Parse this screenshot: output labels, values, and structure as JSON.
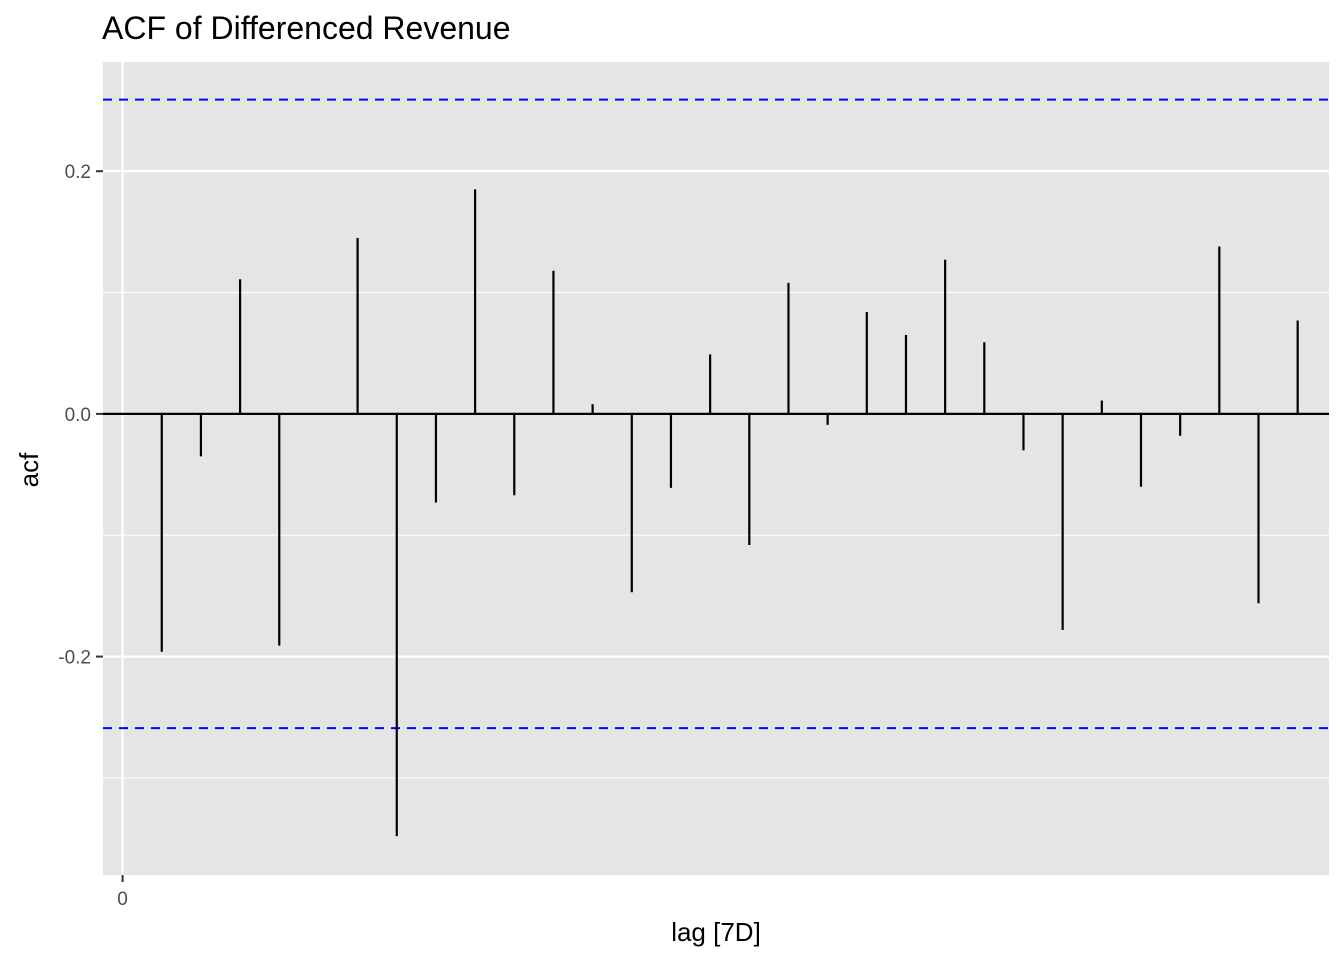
{
  "chart_data": {
    "type": "bar",
    "title": "ACF of Differenced Revenue",
    "xlabel": "lag [7D]",
    "ylabel": "acf",
    "xlim": [
      -0.5,
      30.8
    ],
    "ylim": [
      -0.38,
      0.29
    ],
    "x_ticks": [
      0
    ],
    "x_tick_labels": [
      "0"
    ],
    "y_ticks": [
      -0.2,
      0.0,
      0.2
    ],
    "y_tick_labels": [
      "-0.2",
      "0.0",
      "0.2"
    ],
    "y_minor_gridlines": [
      -0.3,
      -0.1,
      0.1
    ],
    "grid": true,
    "confidence_bound": 0.259,
    "series": [
      {
        "name": "acf",
        "lags": [
          1,
          2,
          3,
          4,
          5,
          6,
          7,
          8,
          9,
          10,
          11,
          12,
          13,
          14,
          15,
          16,
          17,
          18,
          19,
          20,
          21,
          22,
          23,
          24,
          25,
          26,
          27,
          28,
          29,
          30
        ],
        "values": [
          -0.196,
          -0.035,
          0.111,
          -0.191,
          0.0,
          0.145,
          -0.348,
          -0.073,
          0.185,
          -0.067,
          0.118,
          0.008,
          -0.147,
          -0.061,
          0.049,
          -0.108,
          0.108,
          -0.009,
          0.084,
          0.065,
          0.127,
          0.059,
          -0.03,
          -0.178,
          0.011,
          -0.06,
          -0.018,
          0.138,
          -0.156,
          0.077
        ]
      }
    ],
    "colors": {
      "panel": "#e5e5e5",
      "grid": "#ffffff",
      "bars": "#000000",
      "bounds": "#0000ff",
      "zero_line": "#000000"
    }
  }
}
